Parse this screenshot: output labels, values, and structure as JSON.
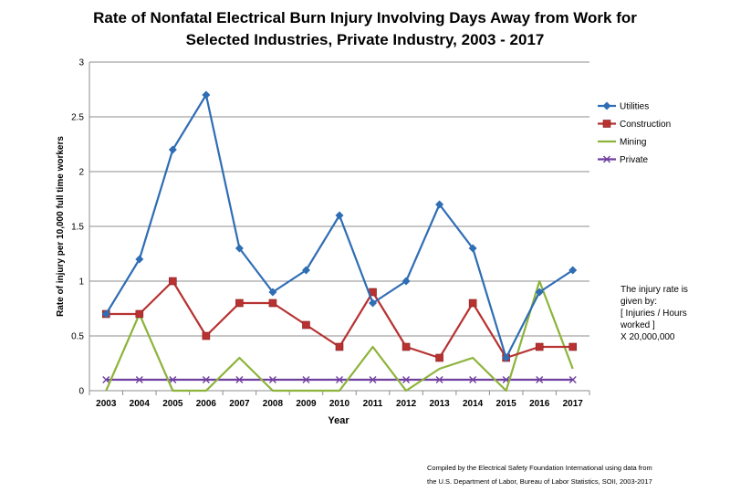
{
  "chart_data": {
    "type": "line",
    "title_lines": [
      "Rate of Nonfatal Electrical Burn Injury Involving Days Away from Work for",
      "Selected Industries, Private Industry, 2003 - 2017"
    ],
    "xlabel": "Year",
    "ylabel": "Rate of injury per 10,000 full time workers",
    "ylim": [
      0,
      3
    ],
    "yticks": [
      0,
      0.5,
      1,
      1.5,
      2,
      2.5,
      3
    ],
    "grid": "horizontal",
    "legend_position": "right",
    "categories": [
      "2003",
      "2004",
      "2005",
      "2006",
      "2007",
      "2008",
      "2009",
      "2010",
      "2011",
      "2012",
      "2013",
      "2014",
      "2015",
      "2016",
      "2017"
    ],
    "series": [
      {
        "name": "Utilities",
        "color": "#2f6db5",
        "marker": "diamond",
        "values": [
          0.7,
          1.2,
          2.2,
          2.7,
          1.3,
          0.9,
          1.1,
          1.6,
          0.8,
          1.0,
          1.7,
          1.3,
          0.3,
          0.9,
          1.1
        ]
      },
      {
        "name": "Construction",
        "color": "#b83232",
        "marker": "square",
        "values": [
          0.7,
          0.7,
          1.0,
          0.5,
          0.8,
          0.8,
          0.6,
          0.4,
          0.9,
          0.4,
          0.3,
          0.8,
          0.3,
          0.4,
          0.4
        ]
      },
      {
        "name": "Mining",
        "color": "#8db33a",
        "marker": "none",
        "values": [
          0.0,
          0.7,
          0.0,
          0.0,
          0.3,
          0.0,
          0.0,
          0.0,
          0.4,
          0.0,
          0.2,
          0.3,
          0.0,
          1.0,
          0.2
        ]
      },
      {
        "name": "Private",
        "color": "#6f3fa0",
        "marker": "x",
        "values": [
          0.1,
          0.1,
          0.1,
          0.1,
          0.1,
          0.1,
          0.1,
          0.1,
          0.1,
          0.1,
          0.1,
          0.1,
          0.1,
          0.1,
          0.1
        ]
      }
    ]
  },
  "note_lines": [
    "The injury rate is",
    "given by:",
    "[ Injuries / Hours",
    "worked ]",
    "X 20,000,000"
  ],
  "source_lines": [
    "Compiled by the Electrical Safety Foundation International using data from",
    "the U.S. Department of Labor, Bureau of Labor Statistics, SOII, 2003-2017"
  ]
}
